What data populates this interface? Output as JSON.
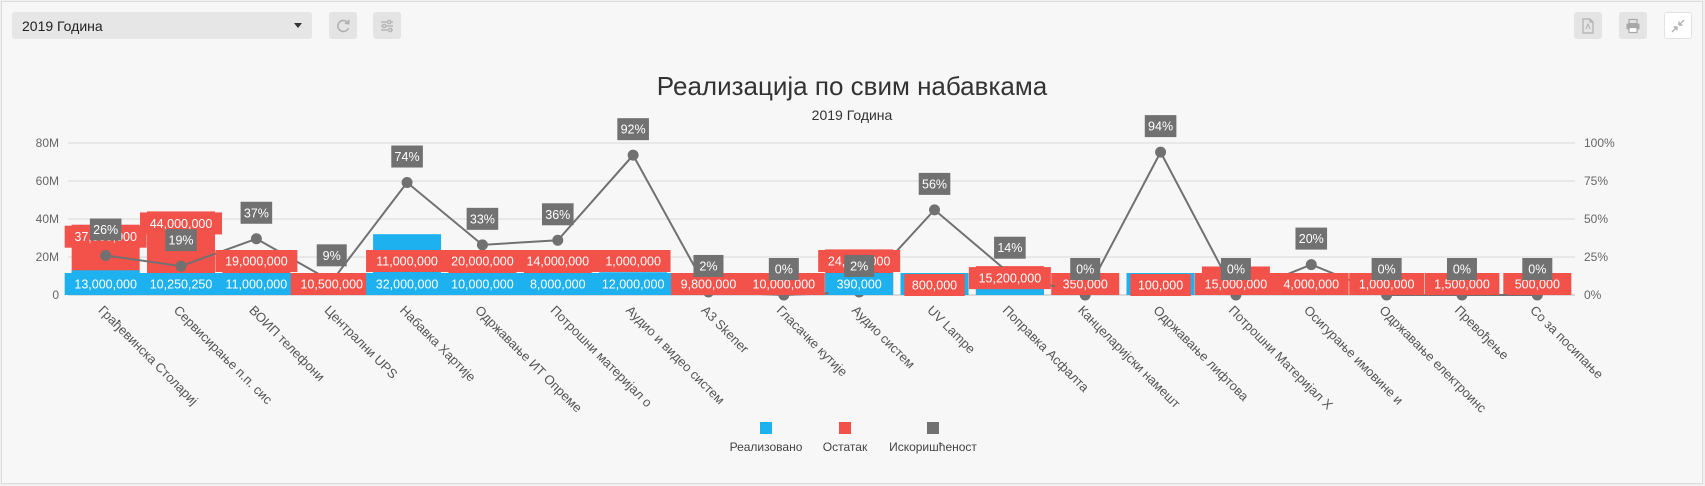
{
  "toolbar": {
    "year_selected": "2019 Година",
    "icons": [
      "refresh-icon",
      "sliders-icon",
      "pdf-icon",
      "print-icon",
      "collapse-icon"
    ]
  },
  "colors": {
    "realized": "#1eb1ef",
    "remaining": "#f2524a",
    "utilization": "#717171",
    "grid": "#d9d9d9"
  },
  "chart_data": {
    "type": "bar",
    "title": "Реализација по свим набавкама",
    "subtitle": "2019 Година",
    "categories": [
      "Грађевинска Столариј",
      "Сервисирање п.п. сис",
      "ВОИП телефони",
      "Централни UPS",
      "Набавка Хартије",
      "Одржавање ИТ Опреме",
      "Потрошни материјал о",
      "Аудио и видео систем",
      "A3 Skener",
      "Гласачке кутије",
      "Аудио систем",
      "UV Lampe",
      "Поправка Асфалта",
      "Канцеларијски намешт",
      "Одржавање лифтова",
      "Потрошни Материјал Х",
      "Осигурање имовине и",
      "Одржавање електроинс",
      "Превођење",
      "Со за посипање"
    ],
    "series": [
      {
        "name": "Реализовано",
        "values": [
          13000000,
          10250250,
          11000000,
          0,
          32000000,
          10000000,
          8000000,
          12000000,
          0,
          0,
          390000,
          11000000,
          11000000,
          0,
          11000000,
          0,
          0,
          0,
          0,
          0
        ],
        "labels": [
          "13,000,000",
          "10,250,250",
          "11,000,000",
          "",
          "32,000,000",
          "10,000,000",
          "8,000,000",
          "12,000,000",
          "",
          "",
          "390,000",
          "",
          "",
          "",
          "",
          "",
          "",
          "",
          "",
          ""
        ]
      },
      {
        "name": "Остатак",
        "values": [
          37000000,
          44000000,
          19000000,
          10500000,
          11000000,
          20000000,
          14000000,
          1000000,
          9800000,
          10000000,
          24000000,
          800000,
          15200000,
          350000,
          100000,
          15000000,
          4000000,
          1000000,
          1500000,
          500000
        ],
        "labels": [
          "37,000,000",
          "44,000,000",
          "19,000,000",
          "10,500,000",
          "11,000,000",
          "20,000,000",
          "14,000,000",
          "1,000,000",
          "9,800,000",
          "10,000,000",
          "24,000,000",
          "800,000",
          "15,200,000",
          "350,000",
          "100,000",
          "15,000,000",
          "4,000,000",
          "1,000,000",
          "1,500,000",
          "500,000"
        ]
      },
      {
        "name": "Искоришћеност",
        "axis": "right",
        "values": [
          26,
          19,
          37,
          9,
          74,
          33,
          36,
          92,
          2,
          0,
          2,
          56,
          14,
          0,
          94,
          0,
          20,
          0,
          0,
          0
        ],
        "labels": [
          "26%",
          "19%",
          "37%",
          "9%",
          "74%",
          "33%",
          "36%",
          "92%",
          "2%",
          "0%",
          "2%",
          "56%",
          "14%",
          "0%",
          "94%",
          "0%",
          "20%",
          "0%",
          "0%",
          "0%"
        ]
      }
    ],
    "y_left": {
      "ticks": [
        "0",
        "20M",
        "40M",
        "60M",
        "80M"
      ],
      "ylim": [
        0,
        80000000
      ]
    },
    "y_right": {
      "ticks": [
        "0%",
        "25%",
        "50%",
        "75%",
        "100%"
      ],
      "ylim": [
        0,
        100
      ]
    },
    "grid": true,
    "legend": "bottom-center"
  }
}
